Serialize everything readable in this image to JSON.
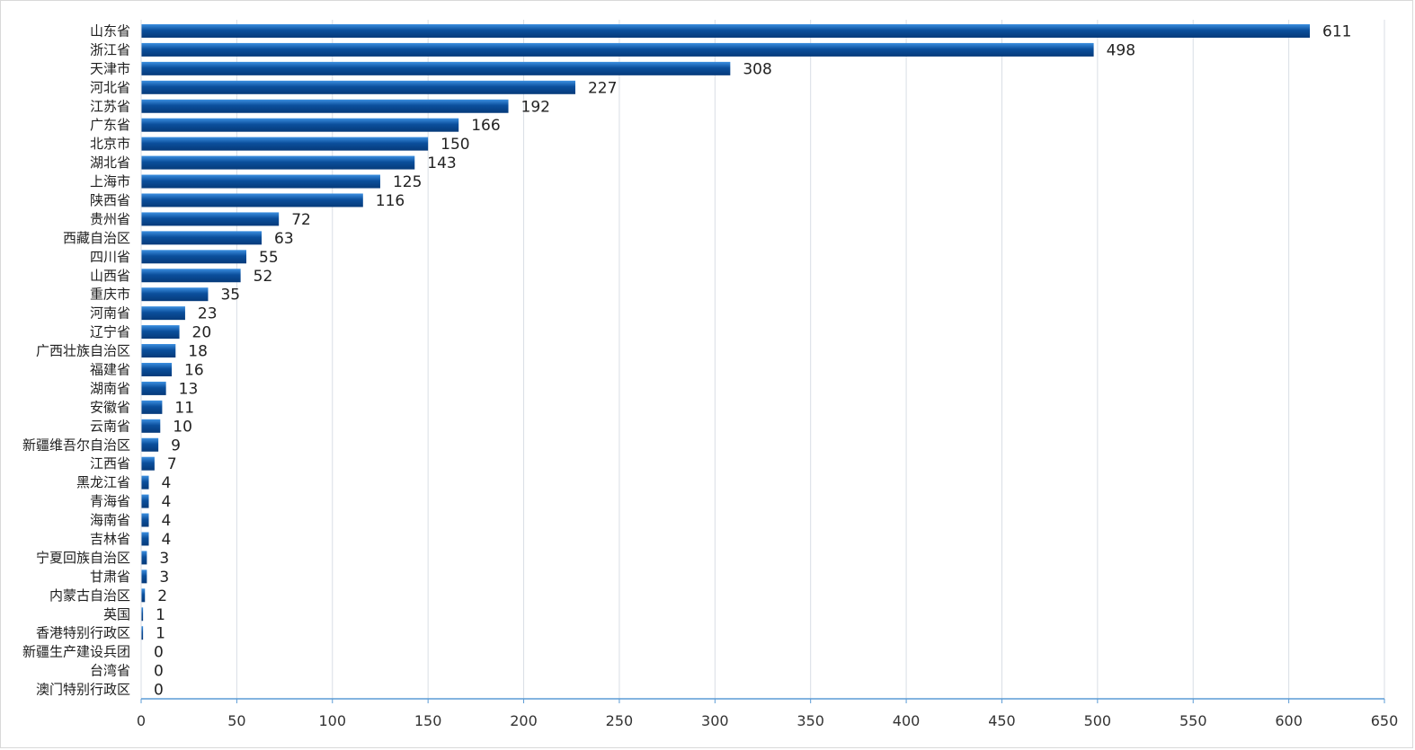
{
  "chart_data": {
    "type": "bar",
    "orientation": "horizontal",
    "title": "",
    "xlabel": "",
    "ylabel": "",
    "categories": [
      "山东省",
      "浙江省",
      "天津市",
      "河北省",
      "江苏省",
      "广东省",
      "北京市",
      "湖北省",
      "上海市",
      "陕西省",
      "贵州省",
      "西藏自治区",
      "四川省",
      "山西省",
      "重庆市",
      "河南省",
      "辽宁省",
      "广西壮族自治区",
      "福建省",
      "湖南省",
      "安徽省",
      "云南省",
      "新疆维吾尔自治区",
      "江西省",
      "黑龙江省",
      "青海省",
      "海南省",
      "吉林省",
      "宁夏回族自治区",
      "甘肃省",
      "内蒙古自治区",
      "英国",
      "香港特别行政区",
      "新疆生产建设兵团",
      "台湾省",
      "澳门特别行政区"
    ],
    "values": [
      611,
      498,
      308,
      227,
      192,
      166,
      150,
      143,
      125,
      116,
      72,
      63,
      55,
      52,
      35,
      23,
      20,
      18,
      16,
      13,
      11,
      10,
      9,
      7,
      4,
      4,
      4,
      4,
      3,
      3,
      2,
      1,
      1,
      0,
      0,
      0
    ],
    "xlim": [
      0,
      650
    ],
    "xticks": [
      "0",
      "50",
      "100",
      "150",
      "200",
      "250",
      "300",
      "350",
      "400",
      "450",
      "500",
      "550",
      "600",
      "650"
    ],
    "grid": "vertical",
    "legend": "none",
    "data_labels": true,
    "colors": {
      "bar_dark": "#0b4f9c",
      "bar_light": "#3b8fe0",
      "axis": "#5b9bd5",
      "grid": "#d9dee5"
    }
  }
}
